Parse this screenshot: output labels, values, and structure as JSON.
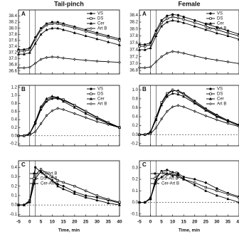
{
  "chart_data": [
    {
      "type": "line",
      "title": "Tail-pinch",
      "label": "A",
      "legend": "upper right",
      "x": [
        -5,
        -2.5,
        0,
        2.5,
        5,
        7.5,
        10,
        12.5,
        15,
        20,
        25,
        30,
        35,
        40
      ],
      "xlim": [
        -5,
        40
      ],
      "xticks": [
        -5,
        0,
        5,
        10,
        15,
        20,
        25,
        30,
        35,
        40
      ],
      "ylim": [
        36.5,
        38.6
      ],
      "yticks": [
        36.6,
        36.8,
        {
          "value": 37,
          "label": "37.0"
        },
        37.2,
        37.4,
        37.6,
        37.8,
        {
          "value": 38,
          "label": "38.0"
        },
        38.2,
        38.4
      ],
      "series": [
        {
          "name": "VS",
          "color": "#000",
          "values": [
            37.3,
            37.3,
            37.35,
            37.7,
            38.0,
            38.15,
            38.2,
            38.2,
            38.15,
            38.05,
            37.95,
            37.85,
            37.75,
            37.65
          ]
        },
        {
          "name": "DS",
          "color": "#000",
          "values": [
            37.25,
            37.25,
            37.3,
            37.65,
            37.95,
            38.1,
            38.15,
            38.15,
            38.1,
            38.0,
            37.9,
            37.8,
            37.7,
            37.6
          ]
        },
        {
          "name": "Cer",
          "color": "#000",
          "values": [
            37.15,
            37.15,
            37.2,
            37.5,
            37.8,
            37.95,
            38.0,
            38.0,
            37.95,
            37.85,
            37.75,
            37.65,
            37.55,
            37.45
          ]
        },
        {
          "name": "Art B",
          "color": "#000",
          "values": [
            36.7,
            36.7,
            36.72,
            36.85,
            36.98,
            37.04,
            37.06,
            37.05,
            37.02,
            36.98,
            36.95,
            36.92,
            36.9,
            36.88
          ]
        }
      ]
    },
    {
      "type": "line",
      "title": "Female",
      "label": "A",
      "legend": "upper right",
      "x": [
        -5,
        -2.5,
        0,
        2.5,
        5,
        7.5,
        10,
        12.5,
        15,
        20,
        25,
        30,
        35,
        40
      ],
      "xlim": [
        -5,
        40
      ],
      "xticks": [
        -5,
        0,
        5,
        10,
        15,
        20,
        25,
        30,
        35,
        40
      ],
      "ylim": [
        36.7,
        38.55
      ],
      "yticks": [
        36.8,
        {
          "value": 37,
          "label": "37.0"
        },
        37.2,
        37.4,
        37.6,
        37.8,
        {
          "value": 38,
          "label": "38.0"
        },
        38.2,
        38.4
      ],
      "series": [
        {
          "name": "VS",
          "color": "#000",
          "values": [
            37.55,
            37.55,
            37.6,
            37.95,
            38.25,
            38.38,
            38.42,
            38.4,
            38.35,
            38.25,
            38.15,
            38.05,
            37.95,
            37.85
          ]
        },
        {
          "name": "DS",
          "color": "#000",
          "values": [
            37.5,
            37.5,
            37.55,
            37.9,
            38.18,
            38.3,
            38.35,
            38.32,
            38.28,
            38.18,
            38.08,
            37.98,
            37.88,
            37.8
          ]
        },
        {
          "name": "Cer",
          "color": "#000",
          "values": [
            37.4,
            37.4,
            37.45,
            37.8,
            38.08,
            38.2,
            38.25,
            38.22,
            38.18,
            38.08,
            37.98,
            37.88,
            37.8,
            37.7
          ]
        },
        {
          "name": "Art B",
          "color": "#000",
          "values": [
            36.88,
            36.88,
            36.9,
            37.05,
            37.2,
            37.3,
            37.35,
            37.33,
            37.3,
            37.22,
            37.15,
            37.1,
            37.05,
            37.0
          ]
        }
      ]
    },
    {
      "type": "line",
      "label": "B",
      "legend": "upper right",
      "x": [
        -5,
        -2.5,
        0,
        2.5,
        5,
        7.5,
        10,
        12.5,
        15,
        20,
        25,
        30,
        35,
        40
      ],
      "xlim": [
        -5,
        40
      ],
      "xticks": [
        -5,
        0,
        5,
        10,
        15,
        20,
        25,
        30,
        35,
        40
      ],
      "ylim": [
        -0.25,
        1.25
      ],
      "yticks": [
        -0.2,
        {
          "value": 0,
          "label": "0.0"
        },
        0.2,
        0.4,
        0.6,
        0.8,
        {
          "value": 1,
          "label": "1.0"
        },
        1.2
      ],
      "series": [
        {
          "name": "VS",
          "color": "#000",
          "values": [
            0,
            0,
            0.05,
            0.3,
            0.65,
            0.85,
            0.92,
            0.92,
            0.88,
            0.75,
            0.6,
            0.45,
            0.32,
            0.2
          ]
        },
        {
          "name": "DS",
          "color": "#000",
          "values": [
            0,
            0,
            0.06,
            0.33,
            0.68,
            0.88,
            0.95,
            0.94,
            0.9,
            0.76,
            0.61,
            0.46,
            0.33,
            0.21
          ]
        },
        {
          "name": "Cer",
          "color": "#000",
          "values": [
            0,
            0,
            0.05,
            0.35,
            0.72,
            0.92,
            0.98,
            0.95,
            0.85,
            0.7,
            0.55,
            0.42,
            0.3,
            0.2
          ]
        },
        {
          "name": "Art B",
          "color": "#000",
          "values": [
            0,
            0,
            0.02,
            0.1,
            0.3,
            0.5,
            0.62,
            0.68,
            0.65,
            0.55,
            0.45,
            0.35,
            0.28,
            0.2
          ]
        }
      ]
    },
    {
      "type": "line",
      "label": "B",
      "legend": "upper right",
      "x": [
        -5,
        -2.5,
        0,
        2.5,
        5,
        7.5,
        10,
        12.5,
        15,
        20,
        25,
        30,
        35,
        40
      ],
      "xlim": [
        -5,
        40
      ],
      "xticks": [
        -5,
        0,
        5,
        10,
        15,
        20,
        25,
        30,
        35,
        40
      ],
      "ylim": [
        -0.25,
        1.1
      ],
      "yticks": [
        -0.2,
        {
          "value": 0,
          "label": "0.0"
        },
        0.2,
        0.4,
        0.6,
        0.8,
        {
          "value": 1,
          "label": "1.0"
        }
      ],
      "series": [
        {
          "name": "VS",
          "color": "#000",
          "values": [
            0,
            0,
            0.05,
            0.35,
            0.7,
            0.9,
            0.98,
            0.98,
            0.92,
            0.75,
            0.58,
            0.44,
            0.32,
            0.22
          ]
        },
        {
          "name": "DS",
          "color": "#000",
          "values": [
            0,
            0,
            0.06,
            0.38,
            0.72,
            0.92,
            1.0,
            0.96,
            0.9,
            0.72,
            0.56,
            0.42,
            0.3,
            0.2
          ]
        },
        {
          "name": "Cer",
          "color": "#000",
          "values": [
            0,
            0,
            0.05,
            0.33,
            0.66,
            0.85,
            0.92,
            0.9,
            0.85,
            0.7,
            0.54,
            0.4,
            0.3,
            0.2
          ]
        },
        {
          "name": "Art B",
          "color": "#000",
          "values": [
            0,
            0,
            0.02,
            0.15,
            0.35,
            0.52,
            0.62,
            0.65,
            0.62,
            0.52,
            0.42,
            0.33,
            0.25,
            0.18
          ]
        }
      ]
    },
    {
      "type": "line",
      "label": "C",
      "legend": "center left",
      "xlabel": "Time, min",
      "x": [
        -5,
        -2.5,
        0,
        2.5,
        5,
        7.5,
        10,
        12.5,
        15,
        20,
        25,
        30,
        35,
        40
      ],
      "xlim": [
        -5,
        40
      ],
      "xticks": [
        -5,
        0,
        5,
        10,
        15,
        20,
        25,
        30,
        35,
        40
      ],
      "ylim": [
        -0.12,
        0.47
      ],
      "yticks": [
        -0.1,
        {
          "value": 0,
          "label": "0.0"
        },
        0.1,
        0.2,
        0.3,
        0.4
      ],
      "series": [
        {
          "name": "VS-Art B",
          "color": "#000",
          "values": [
            0,
            0,
            0.05,
            0.4,
            0.35,
            0.3,
            0.26,
            0.22,
            0.2,
            0.14,
            0.1,
            0.08,
            0.05,
            0.02
          ]
        },
        {
          "name": "DS-Art B",
          "color": "#000",
          "values": [
            0,
            0,
            0.04,
            0.32,
            0.38,
            0.34,
            0.3,
            0.26,
            0.24,
            0.2,
            0.15,
            0.1,
            0.06,
            0.03
          ]
        },
        {
          "name": "Cer-Art B",
          "color": "#000",
          "values": [
            0,
            0,
            0.03,
            0.28,
            0.36,
            0.3,
            0.26,
            0.2,
            0.17,
            0.12,
            0.08,
            0.05,
            0.02,
            0.0
          ]
        }
      ]
    },
    {
      "type": "line",
      "label": "C",
      "legend": "center left",
      "xlabel": "Time, min",
      "x": [
        -5,
        -2.5,
        0,
        2.5,
        5,
        7.5,
        10,
        12.5,
        15,
        20,
        25,
        30,
        35,
        40
      ],
      "xlim": [
        -5,
        40
      ],
      "xticks": [
        -5,
        0,
        5,
        10,
        15,
        20,
        25,
        30,
        35,
        40
      ],
      "ylim": [
        -0.12,
        0.36
      ],
      "yticks": [
        -0.1,
        {
          "value": 0,
          "label": "0.0"
        },
        0.1,
        0.2,
        0.3
      ],
      "series": [
        {
          "name": "VS-Art B",
          "color": "#000",
          "values": [
            0,
            0,
            0.04,
            0.2,
            0.27,
            0.28,
            0.26,
            0.25,
            0.22,
            0.2,
            0.17,
            0.12,
            0.08,
            0.05
          ]
        },
        {
          "name": "DS-Art B",
          "color": "#000",
          "values": [
            0,
            0,
            0.03,
            0.22,
            0.26,
            0.24,
            0.25,
            0.22,
            0.2,
            0.17,
            0.13,
            0.1,
            0.07,
            0.04
          ]
        },
        {
          "name": "Cer-Art B",
          "color": "#000",
          "values": [
            0,
            0,
            0.03,
            0.18,
            0.22,
            0.25,
            0.23,
            0.24,
            0.2,
            0.15,
            0.1,
            0.06,
            0.03,
            0.0
          ]
        }
      ]
    }
  ]
}
